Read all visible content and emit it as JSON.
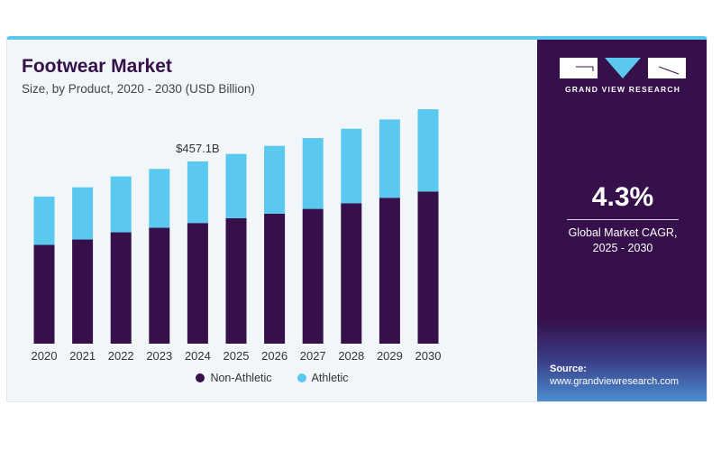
{
  "title": "Footwear Market",
  "subtitle": "Size, by Product, 2020 - 2030 (USD Billion)",
  "brand": {
    "name": "GRAND VIEW RESEARCH",
    "logo_letters": "GVR"
  },
  "cagr": {
    "value": "4.3%",
    "label_line1": "Global Market CAGR,",
    "label_line2": "2025 - 2030"
  },
  "source": {
    "label": "Source:",
    "url": "www.grandviewresearch.com"
  },
  "colors": {
    "non_athletic": "#35104a",
    "athletic": "#5bc8f0",
    "panel": "#35104a"
  },
  "chart_data": {
    "type": "bar",
    "stacked": true,
    "categories": [
      "2020",
      "2021",
      "2022",
      "2023",
      "2024",
      "2025",
      "2026",
      "2027",
      "2028",
      "2029",
      "2030"
    ],
    "series": [
      {
        "name": "Non-Athletic",
        "values": [
          247.8,
          261.3,
          279.4,
          290.7,
          302.7,
          314.8,
          326.1,
          338.1,
          352.4,
          366.0,
          381.8
        ]
      },
      {
        "name": "Athletic",
        "values": [
          121.2,
          131.0,
          140.1,
          147.6,
          154.4,
          161.1,
          170.2,
          177.7,
          186.8,
          196.5,
          206.3
        ]
      }
    ],
    "annotations": [
      {
        "category": "2024",
        "text": "$457.1B"
      }
    ],
    "title": "Footwear Market",
    "subtitle": "Size, by Product, 2020 - 2030 (USD Billion)",
    "xlabel": "",
    "ylabel": "",
    "y_axis_visible": false,
    "grid": false,
    "legend": "bottom"
  }
}
